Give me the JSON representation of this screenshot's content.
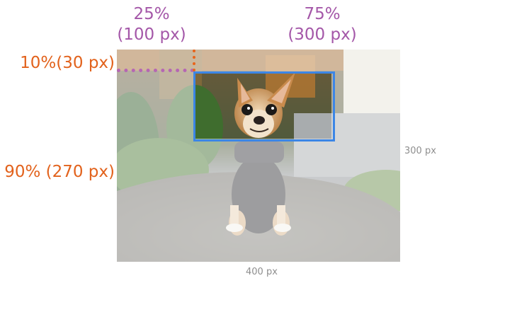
{
  "labels": {
    "left_offset": {
      "percent": "25%",
      "px": "(100 px)"
    },
    "crop_width": {
      "percent": "75%",
      "px": "(300 px)"
    },
    "top_offset": "10%(30 px)",
    "crop_height": "90% (270 px)"
  },
  "dimensions": {
    "width": "400 px",
    "height": "300 px"
  },
  "colors": {
    "horizontal_label": "#a457a8",
    "vertical_label": "#e2621c",
    "crop_box": "#3c86e6",
    "dimension_text": "#8e8e8e"
  },
  "image": {
    "subject": "chihuahua-photo"
  }
}
